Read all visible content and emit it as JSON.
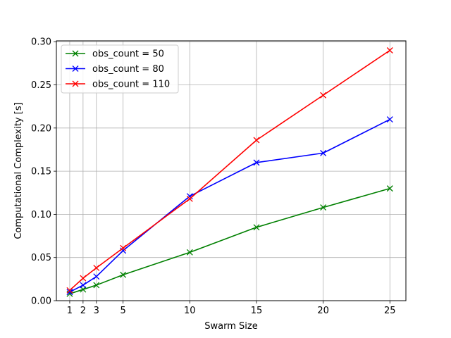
{
  "chart_data": {
    "type": "line",
    "title": "",
    "xlabel": "Swarm Size",
    "ylabel": "Computational Complexity [s]",
    "x": [
      1,
      2,
      3,
      5,
      10,
      15,
      20,
      25
    ],
    "xticks": [
      1,
      2,
      3,
      5,
      10,
      15,
      20,
      25
    ],
    "xtick_labels": [
      "1",
      "2",
      "3",
      "5",
      "10",
      "15",
      "20",
      "25"
    ],
    "yticks": [
      0.0,
      0.05,
      0.1,
      0.15,
      0.2,
      0.25,
      0.3
    ],
    "ytick_labels": [
      "0.00",
      "0.05",
      "0.10",
      "0.15",
      "0.20",
      "0.25",
      "0.30"
    ],
    "xlim": [
      0,
      26.2
    ],
    "ylim": [
      0,
      0.301
    ],
    "grid": true,
    "legend_position": "top-left",
    "marker": "x",
    "series": [
      {
        "name": "obs_count = 50",
        "color": "#008000",
        "values": [
          0.008,
          0.013,
          0.018,
          0.03,
          0.056,
          0.085,
          0.108,
          0.13
        ]
      },
      {
        "name": "obs_count = 80",
        "color": "#0000ff",
        "values": [
          0.01,
          0.018,
          0.028,
          0.058,
          0.121,
          0.16,
          0.171,
          0.21
        ]
      },
      {
        "name": "obs_count = 110",
        "color": "#ff0000",
        "values": [
          0.012,
          0.026,
          0.038,
          0.061,
          0.118,
          0.186,
          0.238,
          0.29
        ]
      }
    ]
  }
}
